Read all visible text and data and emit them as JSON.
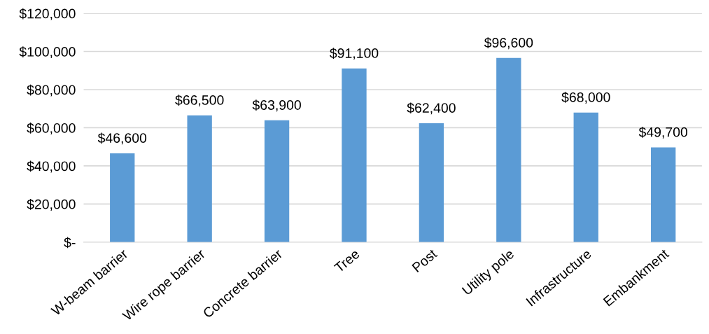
{
  "chart_data": {
    "type": "bar",
    "categories": [
      "W-beam barrier",
      "Wire rope barrier",
      "Concrete barrier",
      "Tree",
      "Post",
      "Utility pole",
      "Infrastructure",
      "Embankment"
    ],
    "values": [
      46600,
      66500,
      63900,
      91100,
      62400,
      96600,
      68000,
      49700
    ],
    "value_labels": [
      "$46,600",
      "$66,500",
      "$63,900",
      "$91,100",
      "$62,400",
      "$96,600",
      "$68,000",
      "$49,700"
    ],
    "color": "#5b9bd5",
    "ylim": [
      0,
      120000
    ],
    "yticks": [
      {
        "value": 0,
        "label": "$-"
      },
      {
        "value": 20000,
        "label": "$20,000"
      },
      {
        "value": 40000,
        "label": "$40,000"
      },
      {
        "value": 60000,
        "label": "$60,000"
      },
      {
        "value": 80000,
        "label": "$80,000"
      },
      {
        "value": 100000,
        "label": "$100,000"
      },
      {
        "value": 120000,
        "label": "$120,000"
      }
    ],
    "grid": "y"
  }
}
